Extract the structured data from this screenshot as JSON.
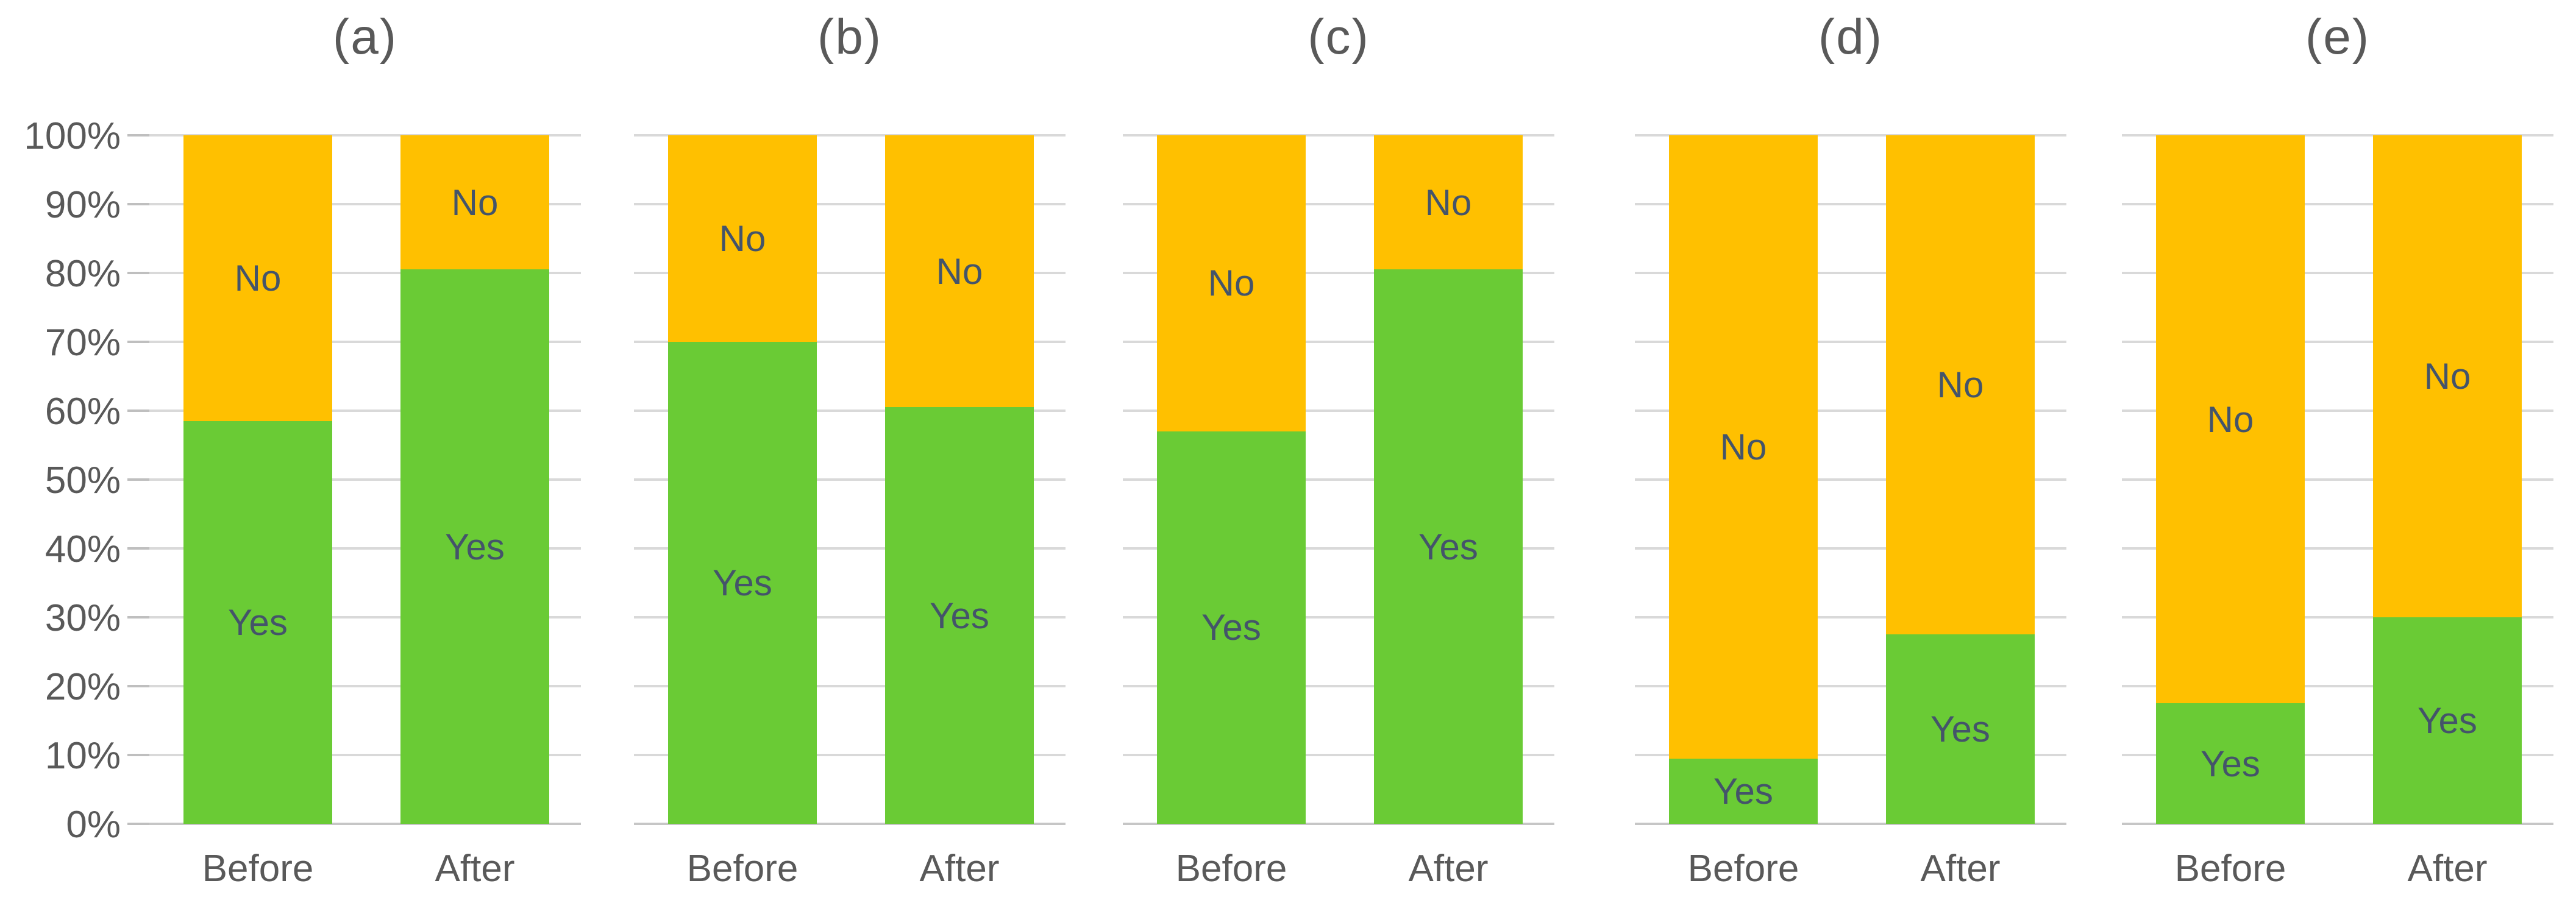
{
  "figure": {
    "description": "Five 100% stacked column charts comparing Yes/No share Before vs After",
    "background": "#ffffff"
  },
  "chart_data": {
    "type": "bar",
    "subtype": "stacked-100-percent-columns",
    "grid": true,
    "legend_position": "none",
    "segment_label_color": "#44546a",
    "axis_text_color": "#595959",
    "gridline_color": "#d9d9d9",
    "series_colors": {
      "Yes": "#6acb35",
      "No": "#ffc000"
    },
    "y_axis": {
      "min": 0,
      "max": 100,
      "step": 10,
      "unit": "%",
      "tick_labels": [
        "100%",
        "90%",
        "80%",
        "70%",
        "60%",
        "50%",
        "40%",
        "30%",
        "20%",
        "10%",
        "0%"
      ],
      "labels_shown_on": "first panel only"
    },
    "panels": [
      {
        "title": "(a)",
        "categories": [
          "Before",
          "After"
        ],
        "series": [
          {
            "name": "Yes",
            "values": [
              58.5,
              80.5
            ]
          },
          {
            "name": "No",
            "values": [
              41.5,
              19.5
            ]
          }
        ]
      },
      {
        "title": "(b)",
        "categories": [
          "Before",
          "After"
        ],
        "series": [
          {
            "name": "Yes",
            "values": [
              70,
              60.5
            ]
          },
          {
            "name": "No",
            "values": [
              30,
              39.5
            ]
          }
        ]
      },
      {
        "title": "(c)",
        "categories": [
          "Before",
          "After"
        ],
        "series": [
          {
            "name": "Yes",
            "values": [
              57,
              80.5
            ]
          },
          {
            "name": "No",
            "values": [
              43,
              19.5
            ]
          }
        ]
      },
      {
        "title": "(d)",
        "categories": [
          "Before",
          "After"
        ],
        "series": [
          {
            "name": "Yes",
            "values": [
              9.5,
              27.5
            ]
          },
          {
            "name": "No",
            "values": [
              90.5,
              72.5
            ]
          }
        ]
      },
      {
        "title": "(e)",
        "categories": [
          "Before",
          "After"
        ],
        "series": [
          {
            "name": "Yes",
            "values": [
              17.5,
              30
            ]
          },
          {
            "name": "No",
            "values": [
              82.5,
              70
            ]
          }
        ]
      }
    ]
  }
}
